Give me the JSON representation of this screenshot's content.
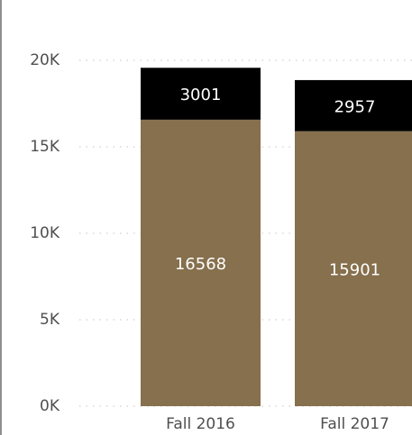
{
  "chart_data": {
    "type": "bar",
    "stacked": true,
    "categories": [
      "Fall 2016",
      "Fall 2017"
    ],
    "series": [
      {
        "values": [
          16568,
          15901
        ],
        "color": "#86704d"
      },
      {
        "values": [
          3001,
          2957
        ],
        "color": "#000000"
      }
    ],
    "ylim": [
      0,
      20000
    ],
    "yticks": [
      {
        "value": 0,
        "label": "0K"
      },
      {
        "value": 5000,
        "label": "5K"
      },
      {
        "value": 10000,
        "label": "10K"
      },
      {
        "value": 15000,
        "label": "15K"
      },
      {
        "value": 20000,
        "label": "20K"
      }
    ],
    "grid": true,
    "legend": "none"
  }
}
